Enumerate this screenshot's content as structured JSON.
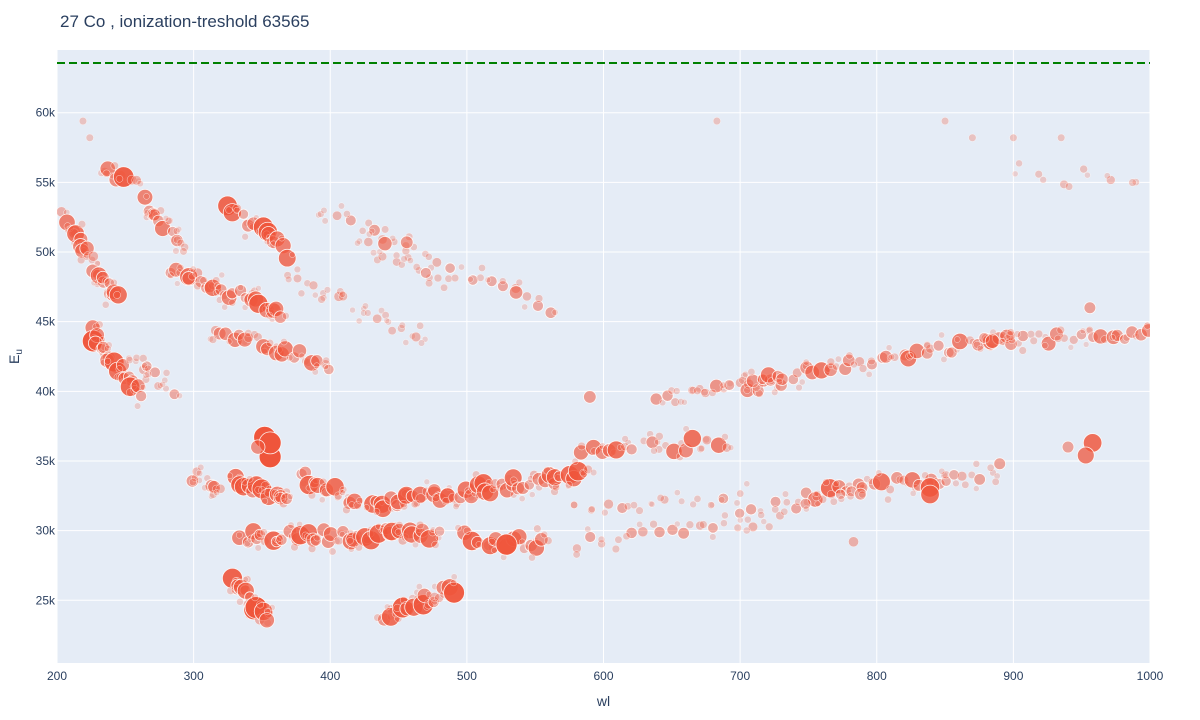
{
  "chart_data": {
    "type": "scatter",
    "title": "27 Co , ionization-treshold 63565",
    "xlabel": "wl",
    "ylabel": "E",
    "ylabel_sub": "u",
    "xlim": [
      200,
      1000
    ],
    "ylim": [
      20500,
      64500
    ],
    "x_ticks": [
      200,
      300,
      400,
      500,
      600,
      700,
      800,
      900,
      1000
    ],
    "x_tick_labels": [
      "200",
      "300",
      "400",
      "500",
      "600",
      "700",
      "800",
      "900",
      "1000"
    ],
    "y_ticks": [
      25000,
      30000,
      35000,
      40000,
      45000,
      50000,
      55000,
      60000
    ],
    "y_tick_labels": [
      "25k",
      "30k",
      "35k",
      "40k",
      "45k",
      "50k",
      "55k",
      "60k"
    ],
    "threshold": 63565,
    "grid": true,
    "colors": {
      "marker": "#ef553b",
      "threshold_line": "#008000",
      "plot_bg": "#e5ecf6",
      "grid": "#ffffff"
    },
    "bands": [
      {
        "x0": 235,
        "x1": 258,
        "y0": 55700,
        "y1": 55300,
        "n": 7,
        "imax": 0.95
      },
      {
        "x0": 205,
        "x1": 245,
        "y0": 52500,
        "y1": 46500,
        "n": 22,
        "imax": 0.85
      },
      {
        "x0": 225,
        "x1": 260,
        "y0": 44200,
        "y1": 39800,
        "n": 22,
        "imax": 1.0
      },
      {
        "x0": 265,
        "x1": 295,
        "y0": 53500,
        "y1": 50500,
        "n": 12,
        "imax": 0.75
      },
      {
        "x0": 325,
        "x1": 370,
        "y0": 53300,
        "y1": 50000,
        "n": 14,
        "imax": 0.95
      },
      {
        "x0": 285,
        "x1": 365,
        "y0": 48800,
        "y1": 45500,
        "n": 26,
        "imax": 0.85
      },
      {
        "x0": 315,
        "x1": 400,
        "y0": 44500,
        "y1": 41800,
        "n": 20,
        "imax": 0.7
      },
      {
        "x0": 255,
        "x1": 285,
        "y0": 42500,
        "y1": 39800,
        "n": 10,
        "imax": 0.35
      },
      {
        "x0": 330,
        "x1": 355,
        "y0": 26200,
        "y1": 23500,
        "n": 16,
        "imax": 1.0
      },
      {
        "x0": 440,
        "x1": 490,
        "y0": 24000,
        "y1": 25800,
        "n": 18,
        "imax": 0.95
      },
      {
        "x0": 330,
        "x1": 370,
        "y0": 33800,
        "y1": 32000,
        "n": 16,
        "imax": 0.95
      },
      {
        "x0": 380,
        "x1": 420,
        "y0": 34000,
        "y1": 32000,
        "n": 14,
        "imax": 0.85
      },
      {
        "x0": 300,
        "x1": 320,
        "y0": 34000,
        "y1": 32800,
        "n": 8,
        "imax": 0.5
      },
      {
        "x0": 335,
        "x1": 480,
        "y0": 29500,
        "y1": 29800,
        "n": 40,
        "imax": 0.85
      },
      {
        "x0": 430,
        "x1": 590,
        "y0": 31800,
        "y1": 34200,
        "n": 48,
        "imax": 0.85
      },
      {
        "x0": 500,
        "x1": 560,
        "y0": 29500,
        "y1": 29000,
        "n": 14,
        "imax": 0.85
      },
      {
        "x0": 585,
        "x1": 690,
        "y0": 35800,
        "y1": 36300,
        "n": 18,
        "imax": 0.8
      },
      {
        "x0": 640,
        "x1": 730,
        "y0": 39500,
        "y1": 40500,
        "n": 16,
        "imax": 0.6
      },
      {
        "x0": 700,
        "x1": 900,
        "y0": 40500,
        "y1": 43800,
        "n": 38,
        "imax": 0.75
      },
      {
        "x0": 880,
        "x1": 1000,
        "y0": 43500,
        "y1": 44300,
        "n": 22,
        "imax": 0.6
      },
      {
        "x0": 750,
        "x1": 850,
        "y0": 32500,
        "y1": 33800,
        "n": 18,
        "imax": 0.85
      },
      {
        "x0": 700,
        "x1": 790,
        "y0": 31500,
        "y1": 32500,
        "n": 12,
        "imax": 0.45
      },
      {
        "x0": 580,
        "x1": 730,
        "y0": 29000,
        "y1": 30800,
        "n": 16,
        "imax": 0.4
      },
      {
        "x0": 580,
        "x1": 700,
        "y0": 31600,
        "y1": 32400,
        "n": 12,
        "imax": 0.35
      },
      {
        "x0": 370,
        "x1": 470,
        "y0": 48500,
        "y1": 43500,
        "n": 18,
        "imax": 0.3
      },
      {
        "x0": 390,
        "x1": 560,
        "y0": 53000,
        "y1": 46000,
        "n": 22,
        "imax": 0.4
      },
      {
        "x0": 420,
        "x1": 480,
        "y0": 50800,
        "y1": 48200,
        "n": 10,
        "imax": 0.3
      },
      {
        "x0": 845,
        "x1": 890,
        "y0": 33500,
        "y1": 34000,
        "n": 8,
        "imax": 0.4
      },
      {
        "x0": 900,
        "x1": 990,
        "y0": 55500,
        "y1": 55000,
        "n": 6,
        "imax": 0.25
      }
    ],
    "points": [
      {
        "x": 352,
        "y": 36700,
        "i": 1.0
      },
      {
        "x": 356,
        "y": 35300,
        "i": 1.0
      },
      {
        "x": 356,
        "y": 36300,
        "i": 1.0
      },
      {
        "x": 347,
        "y": 36000,
        "i": 0.55
      },
      {
        "x": 958,
        "y": 36300,
        "i": 0.8
      },
      {
        "x": 953,
        "y": 35400,
        "i": 0.7
      },
      {
        "x": 940,
        "y": 36000,
        "i": 0.4
      },
      {
        "x": 440,
        "y": 50600,
        "i": 0.55
      },
      {
        "x": 456,
        "y": 50700,
        "i": 0.45
      },
      {
        "x": 470,
        "y": 48500,
        "i": 0.35
      },
      {
        "x": 536,
        "y": 47100,
        "i": 0.5
      },
      {
        "x": 529,
        "y": 29000,
        "i": 0.95
      },
      {
        "x": 839,
        "y": 33100,
        "i": 0.85
      },
      {
        "x": 839,
        "y": 32600,
        "i": 0.8
      },
      {
        "x": 956,
        "y": 46000,
        "i": 0.4
      },
      {
        "x": 890,
        "y": 34800,
        "i": 0.4
      },
      {
        "x": 683,
        "y": 59400,
        "i": 0.15
      },
      {
        "x": 219,
        "y": 59400,
        "i": 0.15
      },
      {
        "x": 224,
        "y": 58200,
        "i": 0.15
      },
      {
        "x": 850,
        "y": 59400,
        "i": 0.15
      },
      {
        "x": 935,
        "y": 58200,
        "i": 0.15
      },
      {
        "x": 870,
        "y": 58200,
        "i": 0.15
      },
      {
        "x": 900,
        "y": 58200,
        "i": 0.15
      },
      {
        "x": 590,
        "y": 39600,
        "i": 0.45
      },
      {
        "x": 783,
        "y": 29200,
        "i": 0.3
      }
    ]
  }
}
